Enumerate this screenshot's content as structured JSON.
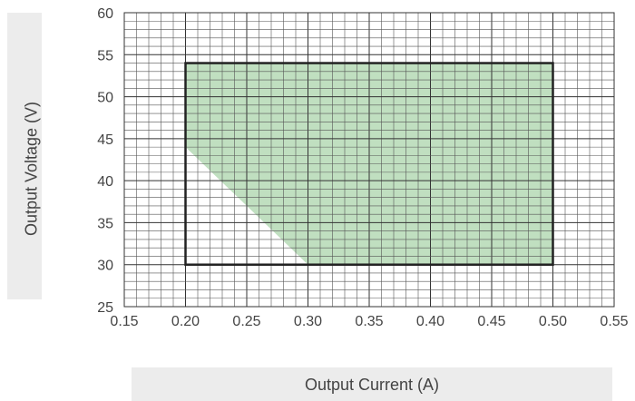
{
  "chart_data": {
    "type": "area",
    "title": "",
    "xlabel": "Output Current (A)",
    "ylabel": "Output Voltage (V)",
    "xlim": [
      0.15,
      0.55
    ],
    "ylim": [
      25,
      60
    ],
    "grid": true,
    "x_ticks": [
      "0.15",
      "0.20",
      "0.25",
      "0.30",
      "0.35",
      "0.40",
      "0.45",
      "0.50",
      "0.55"
    ],
    "y_ticks": [
      "25",
      "30",
      "35",
      "40",
      "45",
      "50",
      "55",
      "60"
    ],
    "operating_window": {
      "x": [
        0.2,
        0.5
      ],
      "y": [
        30,
        54
      ]
    },
    "shaded_region": {
      "x": [
        0.2,
        0.2,
        0.5,
        0.5,
        0.3
      ],
      "y": [
        44,
        54,
        54,
        30,
        30
      ]
    },
    "fill_color": "#c0dfc0"
  }
}
